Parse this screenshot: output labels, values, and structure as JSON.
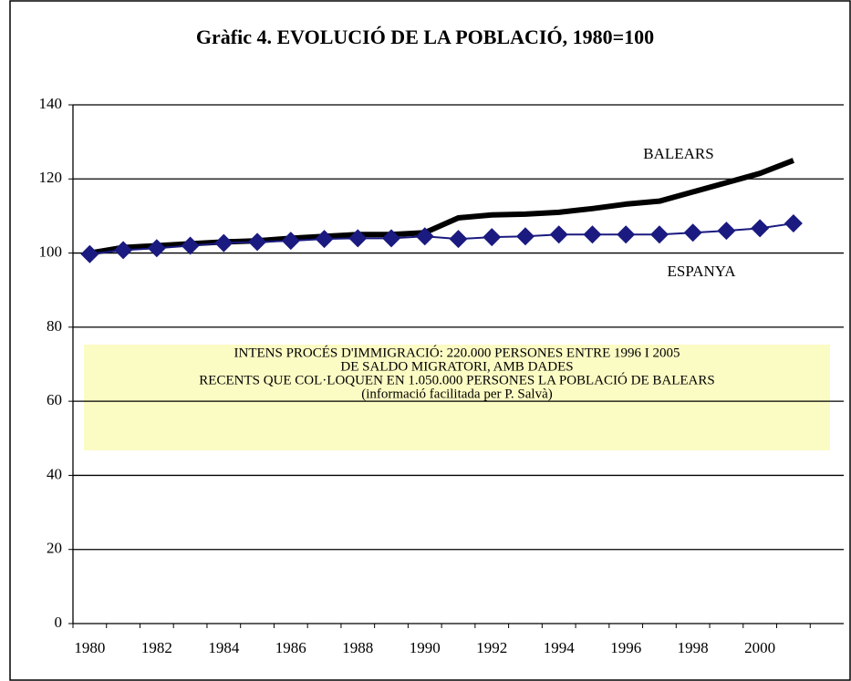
{
  "chart_data": {
    "type": "line",
    "title": "Gràfic 4. EVOLUCIÓ DE LA POBLACIÓ, 1980=100",
    "categories": [
      "1980",
      null,
      "1982",
      null,
      "1984",
      null,
      "1986",
      null,
      "1988",
      null,
      "1990",
      null,
      "1992",
      null,
      "1994",
      null,
      "1996",
      null,
      "1998",
      null,
      "2000",
      null,
      null
    ],
    "series": [
      {
        "name": "BALEARS",
        "color": "#000000",
        "values": [
          100,
          101.5,
          102,
          102.5,
          103,
          103.3,
          104,
          104.5,
          105,
          105,
          105.5,
          109.5,
          110.3,
          110.5,
          111,
          112,
          113.2,
          114,
          116.5,
          119,
          121.5,
          125,
          null
        ]
      },
      {
        "name": "ESPANYA",
        "color": "#1a1a80",
        "values": [
          99.7,
          100.8,
          101.3,
          102,
          102.7,
          103,
          103.3,
          103.8,
          104,
          104,
          104.5,
          103.8,
          104.3,
          104.5,
          105,
          105,
          105,
          105,
          105.5,
          106,
          106.7,
          108,
          null
        ]
      }
    ],
    "note": [
      "INTENS PROCÉS D'IMMIGRACIÓ: 220.000 PERSONES ENTRE 1996 I 2005",
      "DE SALDO MIGRATORI, AMB DADES",
      "RECENTS QUE COL·LOQUEN EN 1.050.000 PERSONES LA POBLACIÓ DE BALEARS",
      "(informació facilitada per P.  Salvà)"
    ],
    "ylim": [
      0,
      140
    ],
    "yticks": [
      0,
      20,
      40,
      60,
      80,
      100,
      120,
      140
    ],
    "grid": true
  }
}
